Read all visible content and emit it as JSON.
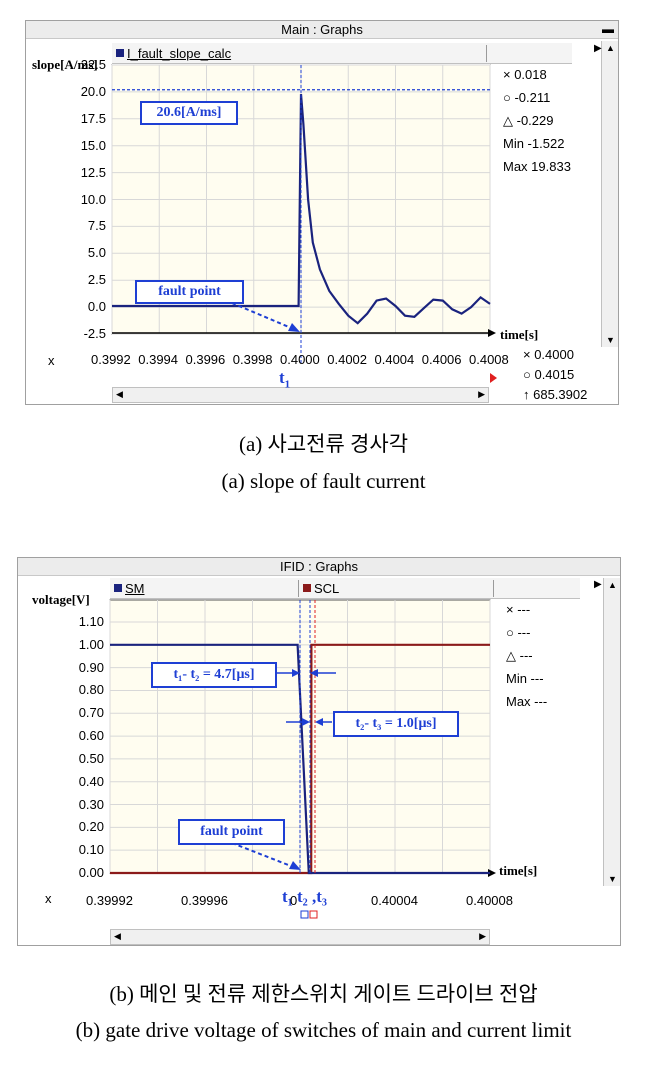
{
  "panel_a": {
    "title": "Main : Graphs",
    "legend": "I_fault_slope_calc",
    "ylabel": "slope[A/ms]",
    "xlabel": "time[s]",
    "yticks": [
      "22.5",
      "20.0",
      "17.5",
      "15.0",
      "12.5",
      "10.0",
      "7.5",
      "5.0",
      "2.5",
      "0.0",
      "-2.5"
    ],
    "xticks": [
      "0.3992",
      "0.3994",
      "0.3996",
      "0.3998",
      "0.4000",
      "0.4002",
      "0.4004",
      "0.4006",
      "0.4008"
    ],
    "x_label": "x",
    "info": [
      "× 0.018",
      "○ -0.211",
      "△ -0.229",
      "Min -1.522",
      "Max 19.833"
    ],
    "cursor_info": [
      "× 0.4000",
      "○ 0.4015",
      "↑ 685.3902"
    ],
    "annotation_peak": "20.6[A/ms]",
    "annotation_fault": "fault point",
    "t_label": "t",
    "t_sub": "1",
    "color": "#1a237e"
  },
  "panel_b": {
    "title": "IFID : Graphs",
    "legend": [
      "SM",
      "SCL"
    ],
    "legend_colors": [
      "#1a237e",
      "#8b1a1a"
    ],
    "ylabel": "voltage[V]",
    "xlabel": "time[s]",
    "yticks": [
      "1.10",
      "1.00",
      "0.90",
      "0.80",
      "0.70",
      "0.60",
      "0.50",
      "0.40",
      "0.30",
      "0.20",
      "0.10",
      "0.00"
    ],
    "xticks": [
      "0.39992",
      "0.39996",
      "0",
      "0.40004",
      "0.40008"
    ],
    "x_label": "x",
    "info": [
      "× ---",
      "○ ---",
      "△ ---",
      "Min ---",
      "Max ---"
    ],
    "annotation_t1t2": "t₁- t₂ = 4.7[μs]",
    "annotation_t2t3": "t₂- t₃ = 1.0[μs]",
    "annotation_fault": "fault point",
    "t_labels": "t₁  t₂ ,t₃"
  },
  "captions": {
    "a_korean": "(a) 사고전류 경사각",
    "a_english": "(a) slope of fault current",
    "b_korean": "(b) 메인 및 전류 제한스위치 게이트 드라이브 전압",
    "b_english": "(b) gate drive voltage of switches of main and current limit"
  },
  "chart_data": [
    {
      "type": "line",
      "title": "Main : Graphs",
      "xlabel": "time[s]",
      "ylabel": "slope[A/ms]",
      "xlim": [
        0.3992,
        0.4008
      ],
      "ylim": [
        -2.5,
        22.5
      ],
      "series": [
        {
          "name": "I_fault_slope_calc",
          "x": [
            0.3992,
            0.3994,
            0.3996,
            0.3998,
            0.39999,
            0.4,
            0.40001,
            0.40003,
            0.40005,
            0.40008,
            0.40012,
            0.40016,
            0.4002,
            0.40024,
            0.40028,
            0.40032,
            0.40036,
            0.4004,
            0.40044,
            0.40048,
            0.40052,
            0.40056,
            0.4006,
            0.40064,
            0.40068,
            0.40072,
            0.40076,
            0.4008
          ],
          "y": [
            0.1,
            0.1,
            0.1,
            0.1,
            0.1,
            19.8,
            17.0,
            10.0,
            6.0,
            3.5,
            1.5,
            0.3,
            -0.8,
            -1.5,
            -0.6,
            0.6,
            0.8,
            0.1,
            -0.8,
            -0.9,
            -0.1,
            0.7,
            0.6,
            -0.2,
            -0.6,
            0.0,
            0.9,
            0.3
          ]
        }
      ]
    },
    {
      "type": "line",
      "title": "IFID : Graphs",
      "xlabel": "time[s]",
      "ylabel": "voltage[V]",
      "xlim": [
        0.39992,
        0.40008
      ],
      "ylim": [
        0,
        1.1
      ],
      "series": [
        {
          "name": "SM",
          "x": [
            0.39992,
            0.399999,
            0.4000037,
            0.40008
          ],
          "y": [
            1.0,
            1.0,
            0.0,
            0.0
          ]
        },
        {
          "name": "SCL",
          "x": [
            0.39992,
            0.4000047,
            0.4000048,
            0.40008
          ],
          "y": [
            0.0,
            0.0,
            1.0,
            1.0
          ]
        }
      ]
    }
  ]
}
